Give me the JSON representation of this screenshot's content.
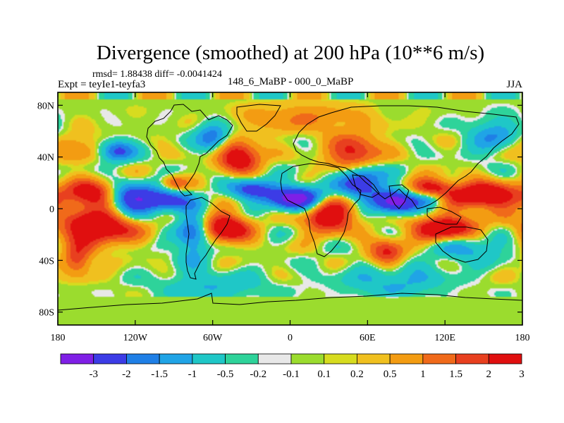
{
  "chart_data": {
    "type": "heatmap",
    "title": "Divergence (smoothed) at 200 hPa (10**6 m/s)",
    "stats_text": "rmsd= 1.88438  diff= -0.0041424",
    "expt_text": "Expt = teyIe1-teyfa3",
    "period_text": "148_6_MaBP - 000_0_MaBP",
    "season": "JJA",
    "xlim": [
      -180,
      180
    ],
    "ylim": [
      -90,
      90
    ],
    "x_ticks": [
      {
        "value": -180,
        "label": "180"
      },
      {
        "value": -120,
        "label": "120W"
      },
      {
        "value": -60,
        "label": "60W"
      },
      {
        "value": 0,
        "label": "0"
      },
      {
        "value": 60,
        "label": "60E"
      },
      {
        "value": 120,
        "label": "120E"
      },
      {
        "value": 180,
        "label": "180"
      }
    ],
    "y_ticks": [
      {
        "value": 80,
        "label": "80N"
      },
      {
        "value": 40,
        "label": "40N"
      },
      {
        "value": 0,
        "label": "0"
      },
      {
        "value": -40,
        "label": "40S"
      },
      {
        "value": -80,
        "label": "80S"
      }
    ],
    "colorbar": {
      "colors": [
        "#7f1fe6",
        "#3c3ce6",
        "#1f7fe6",
        "#20a4e6",
        "#1fc7c7",
        "#2ed39a",
        "#e8e8e8",
        "#9bdc2e",
        "#d7dc1f",
        "#f0c01f",
        "#f39c12",
        "#f06a1a",
        "#e8401f",
        "#e00f0f"
      ],
      "labels": [
        "-3",
        "-2",
        "-1.5",
        "-1",
        "-0.5",
        "-0.2",
        "-0.1",
        "0.1",
        "0.2",
        "0.5",
        "1",
        "1.5",
        "2",
        "3"
      ],
      "levels": [
        -3,
        -2,
        -1.5,
        -1,
        -0.5,
        -0.2,
        -0.1,
        0.1,
        0.2,
        0.5,
        1,
        1.5,
        2,
        3
      ]
    },
    "features": [
      {
        "lon": -125,
        "lat": 8,
        "amp": -3.6,
        "sx": 15,
        "sy": 8
      },
      {
        "lon": -95,
        "lat": 6,
        "amp": -2.2,
        "sx": 12,
        "sy": 6
      },
      {
        "lon": -75,
        "lat": -20,
        "amp": -2.2,
        "sx": 9,
        "sy": 14
      },
      {
        "lon": 5,
        "lat": 8,
        "amp": -3.6,
        "sx": 16,
        "sy": 7
      },
      {
        "lon": -30,
        "lat": 15,
        "amp": -2.2,
        "sx": 12,
        "sy": 6
      },
      {
        "lon": 55,
        "lat": 22,
        "amp": -3.0,
        "sx": 12,
        "sy": 10
      },
      {
        "lon": 82,
        "lat": 5,
        "amp": -3.4,
        "sx": 12,
        "sy": 7
      },
      {
        "lon": 110,
        "lat": 8,
        "amp": -2.2,
        "sx": 10,
        "sy": 5
      },
      {
        "lon": -135,
        "lat": 45,
        "amp": -2.4,
        "sx": 10,
        "sy": 6
      },
      {
        "lon": -60,
        "lat": 55,
        "amp": -2.0,
        "sx": 9,
        "sy": 8
      },
      {
        "lon": 160,
        "lat": 55,
        "amp": -1.6,
        "sx": 15,
        "sy": 10
      },
      {
        "lon": -150,
        "lat": 10,
        "amp": 3.2,
        "sx": 16,
        "sy": 8
      },
      {
        "lon": -150,
        "lat": -15,
        "amp": 3.4,
        "sx": 20,
        "sy": 9
      },
      {
        "lon": -165,
        "lat": -40,
        "amp": 2.0,
        "sx": 8,
        "sy": 8
      },
      {
        "lon": -50,
        "lat": -15,
        "amp": 3.2,
        "sx": 13,
        "sy": 8
      },
      {
        "lon": -90,
        "lat": 20,
        "amp": 1.6,
        "sx": 7,
        "sy": 4
      },
      {
        "lon": -40,
        "lat": 40,
        "amp": 3.0,
        "sx": 12,
        "sy": 8
      },
      {
        "lon": 30,
        "lat": -5,
        "amp": 3.2,
        "sx": 14,
        "sy": 9
      },
      {
        "lon": 50,
        "lat": 42,
        "amp": 2.6,
        "sx": 14,
        "sy": 10
      },
      {
        "lon": 110,
        "lat": 15,
        "amp": 2.8,
        "sx": 12,
        "sy": 6
      },
      {
        "lon": 150,
        "lat": 10,
        "amp": 3.4,
        "sx": 20,
        "sy": 7
      },
      {
        "lon": 120,
        "lat": -15,
        "amp": 3.2,
        "sx": 18,
        "sy": 7
      },
      {
        "lon": 75,
        "lat": -35,
        "amp": 2.2,
        "sx": 10,
        "sy": 8
      },
      {
        "lon": 140,
        "lat": -30,
        "amp": -1.3,
        "sx": 20,
        "sy": 8
      },
      {
        "lon": 80,
        "lat": -55,
        "amp": -1.2,
        "sx": 28,
        "sy": 10
      },
      {
        "lon": -170,
        "lat": 48,
        "amp": 1.2,
        "sx": 18,
        "sy": 8
      },
      {
        "lon": 10,
        "lat": 70,
        "amp": 1.0,
        "sx": 35,
        "sy": 8
      },
      {
        "lon": -60,
        "lat": -60,
        "amp": -1.0,
        "sx": 30,
        "sy": 8
      }
    ]
  }
}
